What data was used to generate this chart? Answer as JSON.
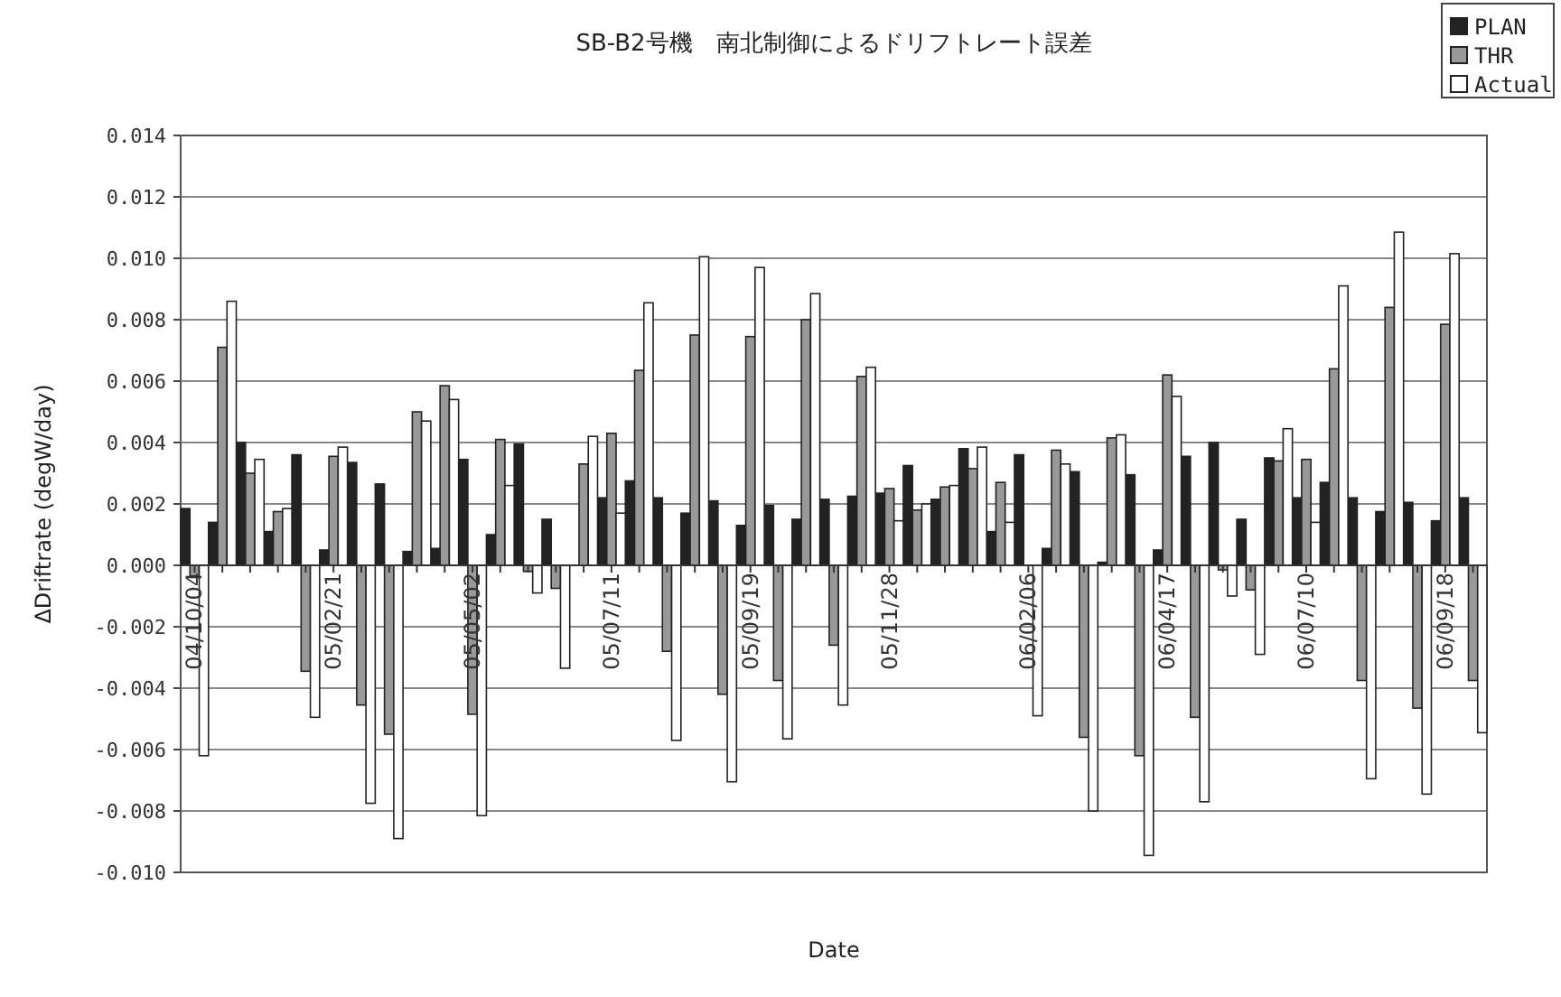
{
  "chart_data": {
    "type": "bar",
    "title": "SB-B2号機　南北制御によるドリフトレート誤差",
    "xlabel": "Date",
    "ylabel": "ΔDriftrate (degW/day)",
    "categories": [
      "04/10/04",
      null,
      null,
      null,
      null,
      "05/02/21",
      null,
      null,
      null,
      null,
      "05/05/02",
      null,
      null,
      null,
      null,
      "05/07/11",
      null,
      null,
      null,
      null,
      "05/09/19",
      null,
      null,
      null,
      null,
      "05/11/28",
      null,
      null,
      null,
      null,
      "06/02/06",
      null,
      null,
      null,
      null,
      "06/04/17",
      null,
      null,
      null,
      null,
      "06/07/10",
      null,
      null,
      null,
      null,
      "06/09/18",
      null
    ],
    "series": [
      {
        "name": "PLAN",
        "color": "#222222",
        "values": [
          0.00185,
          0.0014,
          0.004,
          0.0011,
          0.0036,
          0.0005,
          0.00335,
          0.00265,
          0.00045,
          0.00055,
          0.00345,
          0.001,
          0.00395,
          0.0015,
          null,
          0.0022,
          0.00275,
          0.0022,
          0.0017,
          0.0021,
          0.0013,
          0.00195,
          0.0015,
          0.00215,
          0.00225,
          0.00235,
          0.00325,
          0.00215,
          0.0038,
          0.0011,
          0.0036,
          0.00055,
          0.00305,
          0.0001,
          0.00295,
          0.0005,
          0.00355,
          0.004,
          0.0015,
          0.0035,
          0.0022,
          0.0027,
          0.0022,
          0.00175,
          0.00205,
          0.00145,
          0.0022
        ]
      },
      {
        "name": "THR",
        "color": "#999999",
        "values": [
          -0.00035,
          0.0071,
          0.003,
          0.00175,
          -0.00345,
          0.00355,
          -0.00455,
          -0.0055,
          0.005,
          0.00585,
          -0.00485,
          0.0041,
          -0.0002,
          -0.00075,
          0.0033,
          0.0043,
          0.00635,
          -0.0028,
          0.0075,
          -0.0042,
          0.00745,
          -0.00375,
          0.008,
          -0.0026,
          0.00615,
          0.0025,
          0.0018,
          0.00255,
          0.00315,
          0.0027,
          null,
          0.00375,
          -0.0056,
          0.00415,
          -0.0062,
          0.0062,
          -0.00495,
          -0.00015,
          -0.0008,
          0.0034,
          0.00345,
          0.0064,
          -0.00375,
          0.0084,
          -0.00465,
          0.00785,
          -0.00375
        ]
      },
      {
        "name": "Actual",
        "color": "#ffffff",
        "values": [
          -0.0062,
          0.0086,
          0.00345,
          0.00185,
          -0.00495,
          0.00385,
          -0.00775,
          -0.0089,
          0.0047,
          0.0054,
          -0.00815,
          0.0026,
          -0.0009,
          -0.00335,
          0.0042,
          0.0017,
          0.00855,
          -0.0057,
          0.01005,
          -0.00705,
          0.0097,
          -0.00565,
          0.00885,
          -0.00455,
          0.00645,
          0.00145,
          0.002,
          0.0026,
          0.00385,
          0.0014,
          -0.0049,
          0.0033,
          -0.008,
          0.00425,
          -0.00945,
          0.0055,
          -0.0077,
          -0.001,
          -0.0029,
          0.00445,
          0.0014,
          0.0091,
          -0.00695,
          0.01085,
          -0.00745,
          0.01015,
          -0.00545
        ]
      }
    ],
    "ylim": [
      -0.01,
      0.014
    ],
    "yticks": [
      {
        "value": -0.01,
        "label": "-0.010"
      },
      {
        "value": -0.008,
        "label": "-0.008"
      },
      {
        "value": -0.006,
        "label": "-0.006"
      },
      {
        "value": -0.004,
        "label": "-0.004"
      },
      {
        "value": -0.002,
        "label": "-0.002"
      },
      {
        "value": 0,
        "label": "0.000"
      },
      {
        "value": 0.002,
        "label": "0.002"
      },
      {
        "value": 0.004,
        "label": "0.004"
      },
      {
        "value": 0.006,
        "label": "0.006"
      },
      {
        "value": 0.008,
        "label": "0.008"
      },
      {
        "value": 0.01,
        "label": "0.010"
      },
      {
        "value": 0.012,
        "label": "0.012"
      },
      {
        "value": 0.014,
        "label": "0.014"
      }
    ],
    "grid": "y",
    "legend": "top right"
  }
}
